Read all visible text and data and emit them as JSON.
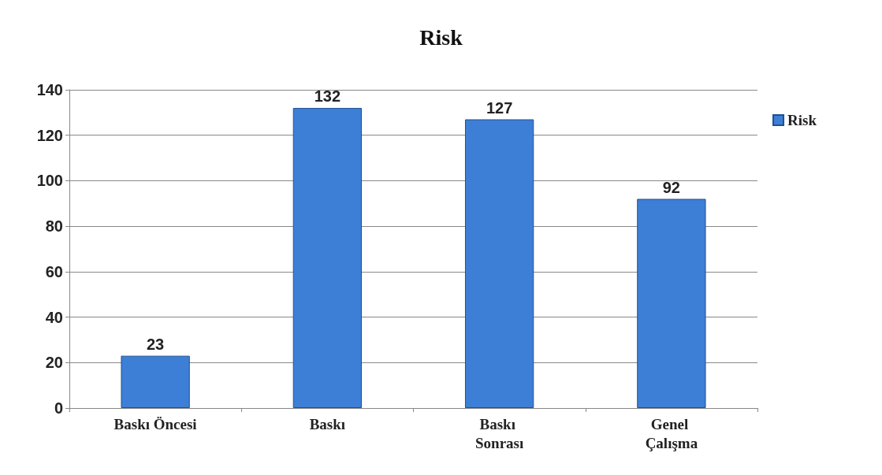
{
  "chart_data": {
    "type": "bar",
    "title": "Risk",
    "categories": [
      "Baskı Öncesi",
      "Baskı",
      "Baskı Sonrası",
      "Genel Çalışma"
    ],
    "series": [
      {
        "name": "Risk",
        "color": "#3d7fd6",
        "values": [
          23,
          132,
          127,
          92
        ]
      }
    ],
    "ylim": [
      0,
      140
    ],
    "yticks": [
      0,
      20,
      40,
      60,
      80,
      100,
      120,
      140
    ],
    "grid": "y",
    "legend": "top right",
    "data_labels": true
  }
}
